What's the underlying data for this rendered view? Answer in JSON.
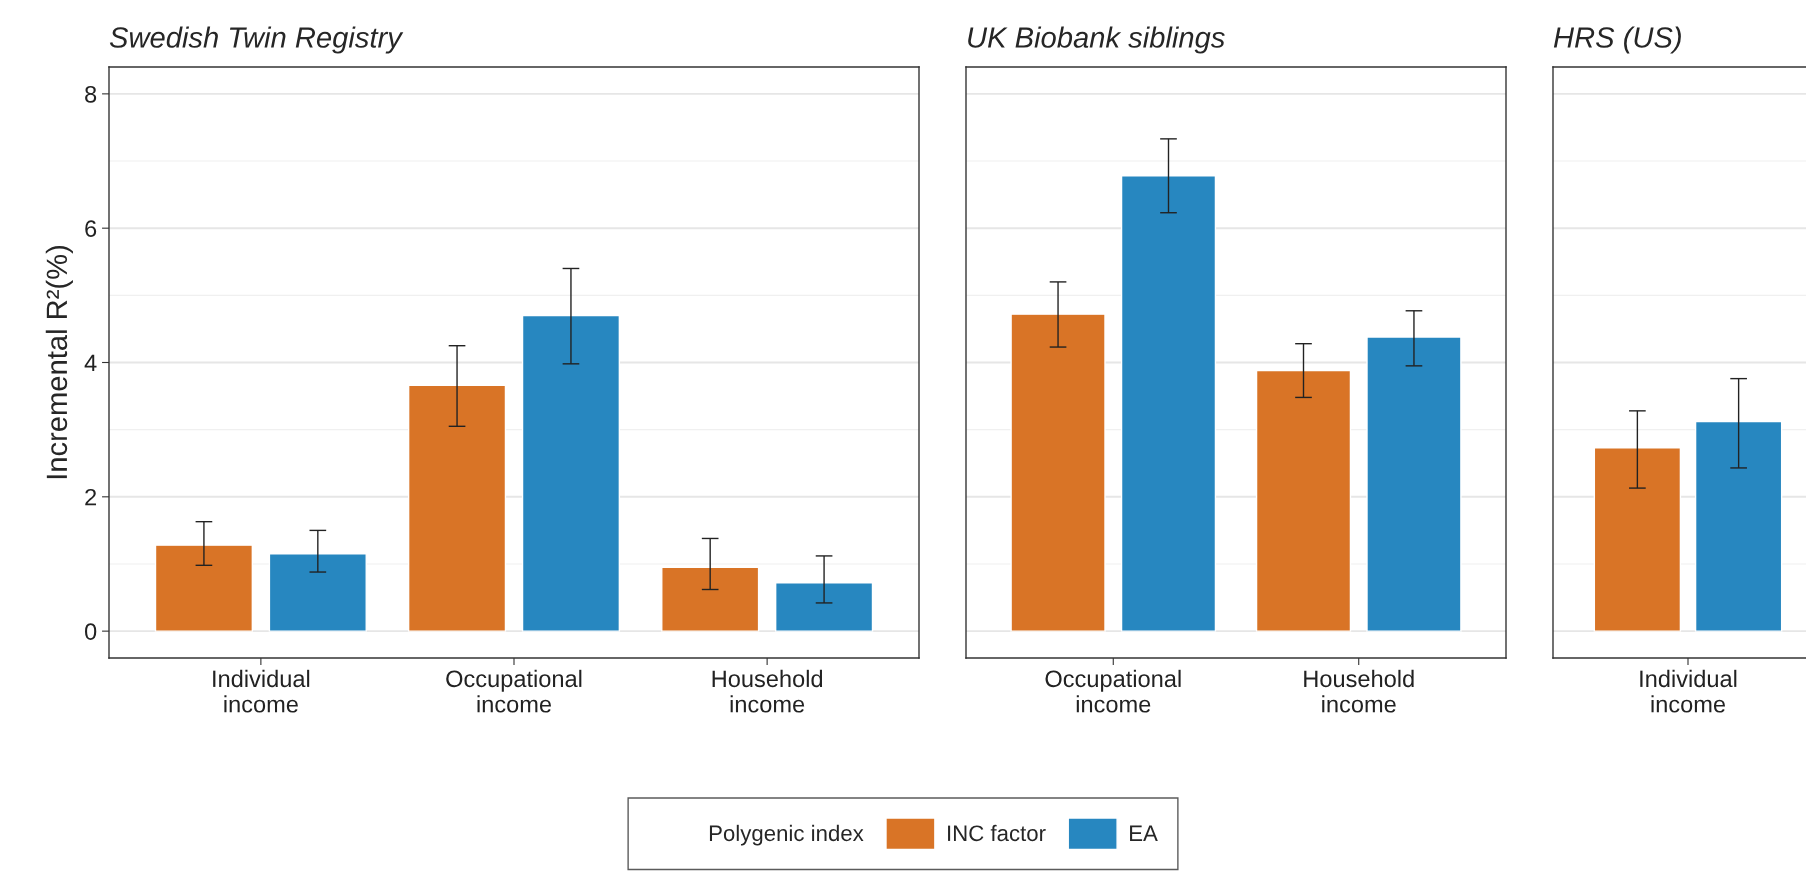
{
  "chart_data": [
    {
      "type": "bar",
      "title": "Swedish Twin Registry",
      "ylabel": "Incremental R²(%)",
      "categories": [
        "Individual\nincome",
        "Occupational\nincome",
        "Household\nincome"
      ],
      "series": [
        {
          "name": "INC factor",
          "color": "#d97426",
          "values": [
            1.28,
            3.66,
            0.95
          ],
          "errors": [
            [
              0.98,
              1.63
            ],
            [
              3.05,
              4.25
            ],
            [
              0.62,
              1.38
            ]
          ]
        },
        {
          "name": "EA",
          "color": "#2787c0",
          "values": [
            1.15,
            4.7,
            0.72
          ],
          "errors": [
            [
              0.88,
              1.5
            ],
            [
              3.98,
              5.4
            ],
            [
              0.42,
              1.12
            ]
          ]
        }
      ],
      "ylim": [
        -0.4,
        8.4
      ],
      "yticks": [
        0,
        2,
        4,
        6,
        8
      ],
      "grid": "y",
      "legend": "bottom",
      "legend_title": "Polygenic index"
    },
    {
      "type": "bar",
      "title": "UK Biobank siblings",
      "categories": [
        "Occupational\nincome",
        "Household\nincome"
      ],
      "series": [
        {
          "color": "#d97426",
          "values": [
            4.72,
            3.88
          ],
          "errors": [
            [
              4.23,
              5.2
            ],
            [
              3.48,
              4.28
            ]
          ]
        },
        {
          "color": "#2787c0",
          "values": [
            6.78,
            4.38
          ],
          "errors": [
            [
              6.23,
              7.33
            ],
            [
              3.95,
              4.77
            ]
          ]
        }
      ],
      "ylim": [
        -0.4,
        8.4
      ],
      "yticks": [
        0,
        2,
        4,
        6,
        8
      ],
      "grid": "y",
      "tick_labels": "x"
    },
    {
      "type": "bar",
      "title": "HRS (US)",
      "categories": [
        "Individual\nincome"
      ],
      "series": [
        {
          "color": "#d97426",
          "values": [
            2.73
          ],
          "errors": [
            [
              2.13,
              3.28
            ]
          ]
        },
        {
          "color": "#2787c0",
          "values": [
            3.12
          ],
          "errors": [
            [
              2.43,
              3.76
            ]
          ]
        }
      ],
      "ylim": [
        -0.4,
        8.4
      ],
      "yticks": [
        0,
        2,
        4,
        6,
        8
      ],
      "grid": "y",
      "tick_labels": "x"
    }
  ]
}
